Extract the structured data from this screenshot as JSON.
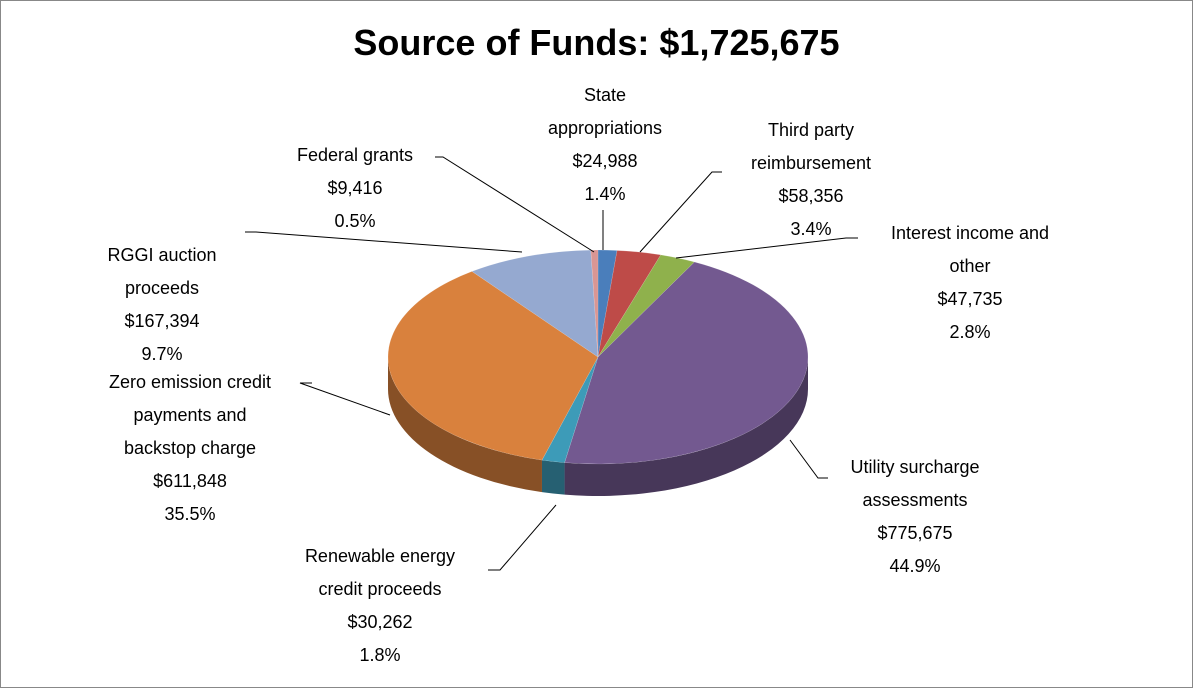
{
  "chart_data": {
    "type": "pie",
    "title": "Source of Funds: $1,725,675",
    "categories": [
      "State appropriations",
      "Third party reimbursement",
      "Interest income and other",
      "Utility surcharge assessments",
      "Renewable energy credit proceeds",
      "Zero emission credit payments and backstop charge",
      "RGGI auction proceeds",
      "Federal grants"
    ],
    "values": [
      24988,
      58356,
      47735,
      775675,
      30262,
      611848,
      167394,
      9416
    ],
    "value_labels": [
      "$24,988",
      "$58,356",
      "$47,735",
      "$775,675",
      "$30,262",
      "$611,848",
      "$167,394",
      "$9,416"
    ],
    "percent_labels": [
      "1.4%",
      "3.4%",
      "2.8%",
      "44.9%",
      "1.8%",
      "35.5%",
      "9.7%",
      "0.5%"
    ],
    "colors": [
      "#4a7ebb",
      "#be4b48",
      "#8fb14c",
      "#735990",
      "#3d9bb8",
      "#d9813d",
      "#95a9d0",
      "#d99694"
    ]
  }
}
